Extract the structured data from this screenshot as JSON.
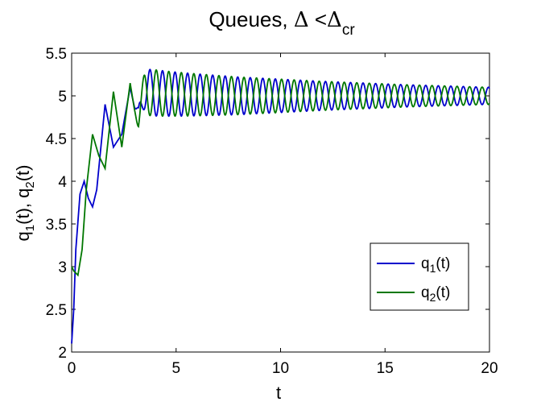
{
  "chart_data": {
    "type": "line",
    "title": {
      "main": "Queues, ",
      "delta1": "Δ",
      "lt": " <",
      "delta2": "Δ",
      "sub": "cr"
    },
    "xlabel": "t",
    "ylabel": {
      "q1": "q",
      "sub1": "1",
      "t1": "(t), ",
      "q2": "q",
      "sub2": "2",
      "t2": "(t)"
    },
    "xlim": [
      0,
      20
    ],
    "ylim": [
      2,
      5.5
    ],
    "xticks": [
      "0",
      "5",
      "10",
      "15",
      "20"
    ],
    "yticks": [
      "2",
      "2.5",
      "3",
      "3.5",
      "4",
      "4.5",
      "5",
      "5.5"
    ],
    "grid": false,
    "legend_position": "lower-right",
    "series": [
      {
        "name": "q",
        "name_sub": "1",
        "name_suffix": "(t)",
        "color": "#0000cc",
        "x": [
          0,
          0.1,
          0.2,
          0.4,
          0.6,
          0.8,
          1.0,
          1.2,
          1.6,
          2.0,
          2.4,
          2.8,
          3.2,
          3.6,
          4.0,
          4.4,
          4.8,
          5.2,
          5.6,
          6.0,
          6.5,
          7.0,
          8.0,
          9.0,
          10.0,
          12.0,
          14.0,
          16.0,
          18.0,
          20.0
        ],
        "y": [
          2.1,
          2.5,
          3.2,
          3.85,
          4.0,
          3.8,
          3.7,
          3.9,
          4.9,
          4.4,
          4.55,
          5.1,
          4.65,
          5.25,
          4.7,
          5.25,
          4.8,
          5.2,
          4.85,
          5.2,
          4.9,
          5.18,
          5.15,
          5.13,
          5.1,
          5.08,
          5.07,
          5.07,
          5.08,
          5.06
        ]
      },
      {
        "name": "q",
        "name_sub": "2",
        "name_suffix": "(t)",
        "color": "#007700",
        "x": [
          0,
          0.1,
          0.3,
          0.5,
          0.7,
          1.0,
          1.3,
          1.6,
          2.0,
          2.4,
          2.8,
          3.2,
          3.6,
          4.0,
          4.4,
          4.8,
          5.2,
          5.6,
          6.0,
          6.5,
          7.0,
          8.0,
          9.0,
          10.0,
          12.0,
          14.0,
          16.0,
          18.0,
          20.0
        ],
        "y": [
          3.0,
          2.95,
          2.9,
          3.2,
          3.9,
          4.55,
          4.3,
          4.15,
          5.05,
          4.4,
          5.15,
          4.55,
          5.2,
          4.65,
          5.25,
          4.75,
          5.2,
          4.8,
          5.18,
          4.85,
          5.15,
          5.12,
          5.12,
          5.1,
          5.09,
          5.08,
          5.07,
          5.08,
          5.08
        ]
      }
    ],
    "oscillation": {
      "period": 0.6,
      "q1_amplitude": [
        0.27,
        0.22,
        0.17,
        0.13,
        0.1
      ],
      "q2_amplitude": [
        0.27,
        0.22,
        0.17,
        0.13,
        0.1
      ],
      "center": [
        5.02,
        5.0,
        5.0,
        5.0,
        5.0
      ],
      "amp_times": [
        4,
        8,
        12,
        16,
        20
      ]
    }
  }
}
